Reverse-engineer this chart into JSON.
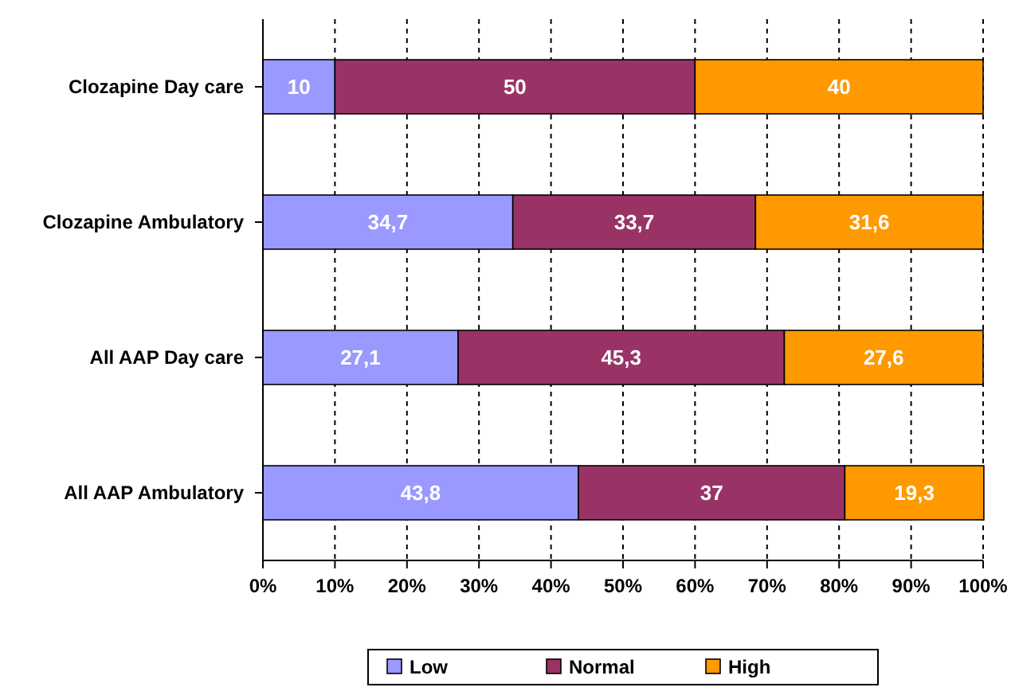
{
  "chart_data": {
    "type": "bar",
    "orientation": "horizontal",
    "stacked": true,
    "categories": [
      "Clozapine Day care",
      "Clozapine Ambulatory",
      "All AAP Day care",
      "All AAP Ambulatory"
    ],
    "series": [
      {
        "name": "Low",
        "color": "#9999ff",
        "values": [
          10,
          34.7,
          27.1,
          43.8
        ],
        "value_labels": [
          "10",
          "34,7",
          "27,1",
          "43,8"
        ]
      },
      {
        "name": "Normal",
        "color": "#993366",
        "values": [
          50,
          33.7,
          45.3,
          37
        ],
        "value_labels": [
          "50",
          "33,7",
          "45,3",
          "37"
        ]
      },
      {
        "name": "High",
        "color": "#ff9900",
        "values": [
          40,
          31.6,
          27.6,
          19.3
        ],
        "value_labels": [
          "40",
          "31,6",
          "27,6",
          "19,3"
        ]
      }
    ],
    "xlim": [
      0,
      100
    ],
    "xticks": [
      {
        "value": 0,
        "label": "0%"
      },
      {
        "value": 10,
        "label": "10%"
      },
      {
        "value": 20,
        "label": "20%"
      },
      {
        "value": 30,
        "label": "30%"
      },
      {
        "value": 40,
        "label": "40%"
      },
      {
        "value": 50,
        "label": "50%"
      },
      {
        "value": 60,
        "label": "60%"
      },
      {
        "value": 70,
        "label": "70%"
      },
      {
        "value": 80,
        "label": "80%"
      },
      {
        "value": 90,
        "label": "90%"
      },
      {
        "value": 100,
        "label": "100%"
      }
    ],
    "grid": "x",
    "legend": "bottom"
  }
}
